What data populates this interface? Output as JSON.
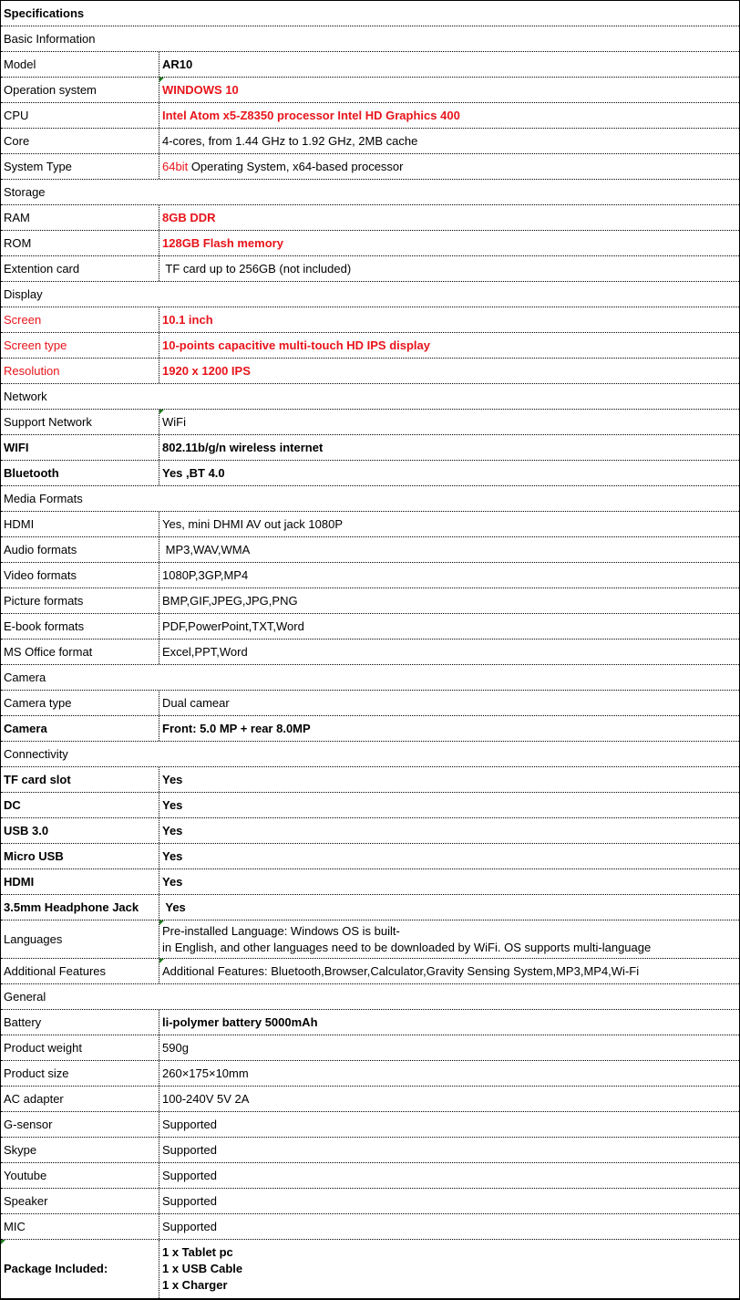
{
  "colors": {
    "accent_red": "#e8141b",
    "note_marker": "#1a7a1a"
  },
  "rows": [
    {
      "section": "Specifications",
      "bold": true
    },
    {
      "section": "Basic Information"
    },
    {
      "label": "Model",
      "value": "AR10",
      "vb": true
    },
    {
      "label": "Operation system",
      "value": "WINDOWS 10",
      "vb": true,
      "vr": true,
      "note": true
    },
    {
      "label": "CPU",
      "value": "Intel Atom x5-Z8350 processor Intel HD Graphics 400",
      "vb": true,
      "vr": true
    },
    {
      "label": "Core",
      "value": "4-cores, from 1.44 GHz to 1.92 GHz, 2MB cache"
    },
    {
      "label": "System Type",
      "value_red_prefix": "64bit",
      "value": " Operating System, x64-based processor"
    },
    {
      "section": "Storage"
    },
    {
      "label": "RAM",
      "value": "8GB DDR",
      "vb": true,
      "vr": true
    },
    {
      "label": "ROM",
      "value": "128GB Flash memory",
      "vb": true,
      "vr": true
    },
    {
      "label": "Extention card",
      "value": " TF card up to 256GB (not included)"
    },
    {
      "section": "Display"
    },
    {
      "label": "Screen",
      "lr": true,
      "value": "10.1 inch",
      "vb": true,
      "vr": true
    },
    {
      "label": "Screen type",
      "lr": true,
      "value": "10-points capacitive multi-touch HD IPS display",
      "vb": true,
      "vr": true
    },
    {
      "label": "Resolution",
      "lr": true,
      "value": "1920 x 1200 IPS",
      "vb": true,
      "vr": true
    },
    {
      "section": "Network"
    },
    {
      "label": "Support Network",
      "value": "WiFi",
      "note": true
    },
    {
      "label": "WIFI",
      "lb": true,
      "value": "802.11b/g/n wireless internet",
      "vb": true
    },
    {
      "label": "Bluetooth",
      "lb": true,
      "value": "Yes ,BT 4.0",
      "vb": true
    },
    {
      "section": "Media Formats"
    },
    {
      "label": "HDMI",
      "value": "Yes, mini DHMI AV out jack 1080P"
    },
    {
      "label": "Audio formats",
      "value": " MP3,WAV,WMA"
    },
    {
      "label": "Video formats",
      "value": "1080P,3GP,MP4"
    },
    {
      "label": "Picture formats",
      "value": "BMP,GIF,JPEG,JPG,PNG"
    },
    {
      "label": "E-book formats",
      "value": "PDF,PowerPoint,TXT,Word"
    },
    {
      "label": "MS Office format",
      "value": "Excel,PPT,Word"
    },
    {
      "section": "Camera"
    },
    {
      "label": "Camera type",
      "value": "Dual camear"
    },
    {
      "label": "Camera",
      "lb": true,
      "value": "Front: 5.0 MP + rear 8.0MP",
      "vb": true
    },
    {
      "section": "Connectivity"
    },
    {
      "label": "TF card slot",
      "lb": true,
      "value": "Yes",
      "vb": true
    },
    {
      "label": "DC",
      "lb": true,
      "value": "Yes",
      "vb": true
    },
    {
      "label": "USB 3.0",
      "lb": true,
      "value": "Yes",
      "vb": true
    },
    {
      "label": "Micro USB",
      "lb": true,
      "value": "Yes",
      "vb": true
    },
    {
      "label": "HDMI",
      "lb": true,
      "value": "Yes",
      "vb": true
    },
    {
      "label": "3.5mm Headphone Jack",
      "lb": true,
      "value": " Yes",
      "vb": true
    },
    {
      "label": "Languages",
      "value": [
        "Pre-installed Language: Windows OS is built-",
        "in English, and other languages need to be downloaded by WiFi. OS supports multi-language"
      ],
      "tall": true,
      "note": true
    },
    {
      "label": "Additional Features",
      "value": "Additional Features: Bluetooth,Browser,Calculator,Gravity Sensing System,MP3,MP4,Wi-Fi",
      "note": true
    },
    {
      "section": "General"
    },
    {
      "label": "Battery",
      "value": "li-polymer battery 5000mAh",
      "vb": true
    },
    {
      "label": "Product weight",
      "value": "590g"
    },
    {
      "label": "Product size",
      "value": "260×175×10mm"
    },
    {
      "label": "AC adapter",
      "value": "100-240V 5V 2A"
    },
    {
      "label": "G-sensor",
      "value": "Supported"
    },
    {
      "label": "Skype",
      "value": "Supported"
    },
    {
      "label": "Youtube",
      "value": "Supported"
    },
    {
      "label": "Speaker",
      "value": "Supported"
    },
    {
      "label": "MIC",
      "value": "Supported"
    },
    {
      "label": "Package Included:",
      "lb": true,
      "value": [
        "1 x Tablet pc",
        "1 x USB Cable",
        "1 x Charger"
      ],
      "vb": true,
      "pkg": true,
      "lnote": true
    }
  ]
}
